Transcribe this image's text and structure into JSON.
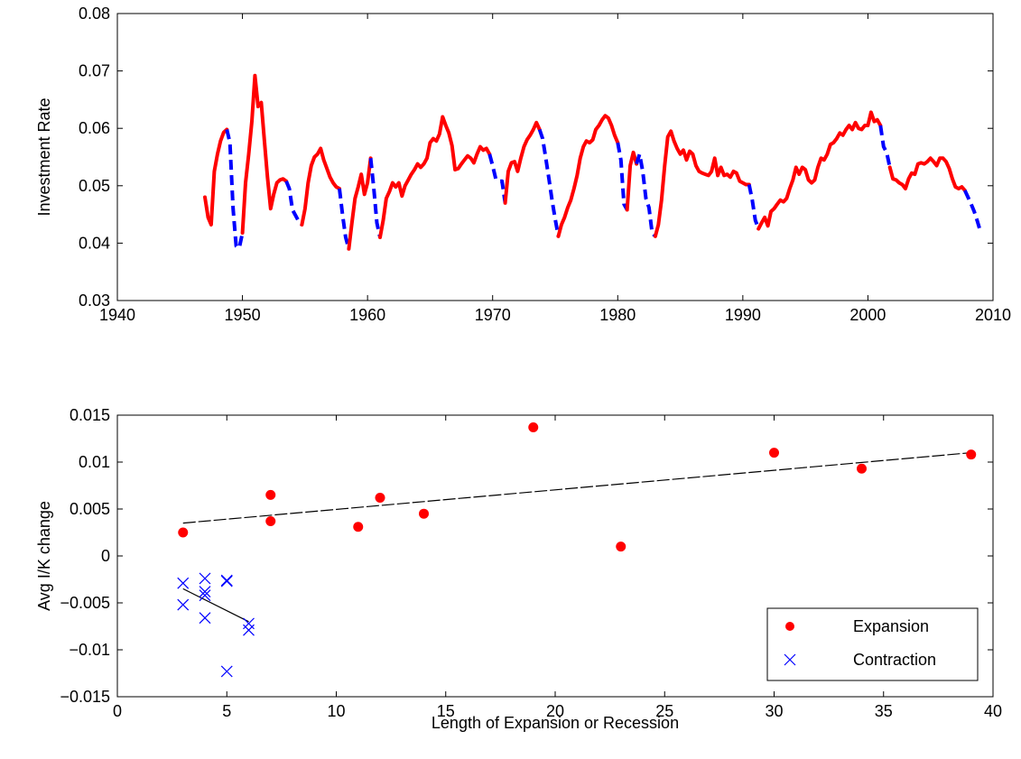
{
  "chart_data": [
    {
      "type": "line",
      "title": "",
      "xlabel": "",
      "ylabel": "Investment Rate",
      "xlim": [
        1940,
        2010
      ],
      "ylim": [
        0.03,
        0.08
      ],
      "xticks": [
        1940,
        1950,
        1960,
        1970,
        1980,
        1990,
        2000,
        2010
      ],
      "yticks": [
        0.03,
        0.04,
        0.05,
        0.06,
        0.07,
        0.08
      ],
      "xtick_labels": [
        "1940",
        "1950",
        "1960",
        "1970",
        "1980",
        "1990",
        "2000",
        "2010"
      ],
      "ytick_labels": [
        "0.03",
        "0.04",
        "0.05",
        "0.06",
        "0.07",
        "0.08"
      ],
      "colors": {
        "expansion": "#ff0000",
        "contraction": "#0000ff"
      },
      "series": [
        {
          "style": "solid",
          "color": "red",
          "x": [
            1947.0,
            1947.25,
            1947.5,
            1947.75,
            1948.0,
            1948.25,
            1948.5,
            1948.75
          ],
          "y": [
            0.048,
            0.0445,
            0.0432,
            0.0525,
            0.0555,
            0.0578,
            0.0593,
            0.0598
          ]
        },
        {
          "style": "dashed",
          "color": "blue",
          "x": [
            1948.75,
            1949.0,
            1949.25,
            1949.5,
            1949.75,
            1950.0
          ],
          "y": [
            0.0598,
            0.0575,
            0.046,
            0.0395,
            0.0392,
            0.0418
          ]
        },
        {
          "style": "solid",
          "color": "red",
          "x": [
            1950.0,
            1950.25,
            1950.5,
            1950.75,
            1951.0,
            1951.25,
            1951.5,
            1951.75,
            1952.0,
            1952.25,
            1952.5,
            1952.75,
            1953.0,
            1953.25,
            1953.5
          ],
          "y": [
            0.0418,
            0.0505,
            0.0555,
            0.0612,
            0.0692,
            0.0638,
            0.0645,
            0.058,
            0.0515,
            0.046,
            0.0485,
            0.0505,
            0.051,
            0.0512,
            0.0508
          ]
        },
        {
          "style": "dashed",
          "color": "blue",
          "x": [
            1953.5,
            1953.75,
            1954.0,
            1954.25,
            1954.5,
            1954.75
          ],
          "y": [
            0.0508,
            0.0495,
            0.0458,
            0.0448,
            0.0438,
            0.0432
          ]
        },
        {
          "style": "solid",
          "color": "red",
          "x": [
            1954.75,
            1955.0,
            1955.25,
            1955.5,
            1955.75,
            1956.0,
            1956.25,
            1956.5,
            1956.75,
            1957.0,
            1957.25,
            1957.5,
            1957.75
          ],
          "y": [
            0.0432,
            0.046,
            0.0505,
            0.0535,
            0.055,
            0.0555,
            0.0565,
            0.0545,
            0.053,
            0.0515,
            0.0505,
            0.0498,
            0.0495
          ]
        },
        {
          "style": "dashed",
          "color": "blue",
          "x": [
            1957.75,
            1958.0,
            1958.25,
            1958.5
          ],
          "y": [
            0.0495,
            0.045,
            0.041,
            0.039
          ]
        },
        {
          "style": "solid",
          "color": "red",
          "x": [
            1958.5,
            1958.75,
            1959.0,
            1959.25,
            1959.5,
            1959.75,
            1960.0,
            1960.25
          ],
          "y": [
            0.039,
            0.0435,
            0.0478,
            0.0498,
            0.052,
            0.0485,
            0.0505,
            0.0548
          ]
        },
        {
          "style": "dashed",
          "color": "blue",
          "x": [
            1960.25,
            1960.5,
            1960.75,
            1961.0
          ],
          "y": [
            0.0548,
            0.0495,
            0.0435,
            0.041
          ]
        },
        {
          "style": "solid",
          "color": "red",
          "x": [
            1961.0,
            1961.25,
            1961.5,
            1961.75,
            1962.0,
            1962.25,
            1962.5,
            1962.75,
            1963.0,
            1963.25,
            1963.5,
            1963.75,
            1964.0,
            1964.25,
            1964.5,
            1964.75,
            1965.0,
            1965.25,
            1965.5,
            1965.75,
            1966.0,
            1966.25,
            1966.5,
            1966.75,
            1967.0,
            1967.25,
            1967.5,
            1967.75,
            1968.0,
            1968.25,
            1968.5,
            1968.75,
            1969.0,
            1969.25,
            1969.5,
            1969.75
          ],
          "y": [
            0.041,
            0.044,
            0.0478,
            0.049,
            0.0505,
            0.0498,
            0.0505,
            0.0482,
            0.05,
            0.051,
            0.052,
            0.0528,
            0.0538,
            0.0532,
            0.0538,
            0.0548,
            0.0575,
            0.0582,
            0.0578,
            0.059,
            0.062,
            0.0605,
            0.0592,
            0.057,
            0.0528,
            0.053,
            0.0538,
            0.0545,
            0.0552,
            0.0548,
            0.054,
            0.0555,
            0.0568,
            0.0562,
            0.0565,
            0.0555
          ]
        },
        {
          "style": "dashed",
          "color": "blue",
          "x": [
            1969.75,
            1970.0,
            1970.25,
            1970.5,
            1970.75,
            1971.0
          ],
          "y": [
            0.0555,
            0.0535,
            0.0512,
            0.0508,
            0.0508,
            0.047
          ]
        },
        {
          "style": "solid",
          "color": "red",
          "x": [
            1971.0,
            1971.25,
            1971.5,
            1971.75,
            1972.0,
            1972.25,
            1972.5,
            1972.75,
            1973.0,
            1973.25,
            1973.5,
            1973.75
          ],
          "y": [
            0.047,
            0.0525,
            0.054,
            0.0542,
            0.0525,
            0.0548,
            0.0568,
            0.058,
            0.0588,
            0.0598,
            0.061,
            0.0598
          ]
        },
        {
          "style": "dashed",
          "color": "blue",
          "x": [
            1973.75,
            1974.0,
            1974.25,
            1974.5,
            1974.75,
            1975.0,
            1975.25
          ],
          "y": [
            0.0598,
            0.0582,
            0.0548,
            0.0512,
            0.0475,
            0.0442,
            0.0412
          ]
        },
        {
          "style": "solid",
          "color": "red",
          "x": [
            1975.25,
            1975.5,
            1975.75,
            1976.0,
            1976.25,
            1976.5,
            1976.75,
            1977.0,
            1977.25,
            1977.5,
            1977.75,
            1978.0,
            1978.25,
            1978.5,
            1978.75,
            1979.0,
            1979.25,
            1979.5,
            1979.75,
            1980.0
          ],
          "y": [
            0.0412,
            0.0432,
            0.0445,
            0.0462,
            0.0475,
            0.0495,
            0.0518,
            0.0548,
            0.0568,
            0.0578,
            0.0575,
            0.058,
            0.0598,
            0.0605,
            0.0615,
            0.0622,
            0.0618,
            0.0605,
            0.0588,
            0.0575
          ]
        },
        {
          "style": "dashed",
          "color": "blue",
          "x": [
            1980.0,
            1980.25,
            1980.5,
            1980.75
          ],
          "y": [
            0.0575,
            0.0545,
            0.0468,
            0.0458
          ]
        },
        {
          "style": "solid",
          "color": "red",
          "x": [
            1980.75,
            1981.0,
            1981.25,
            1981.5
          ],
          "y": [
            0.0458,
            0.0535,
            0.0558,
            0.0538
          ]
        },
        {
          "style": "dashed",
          "color": "blue",
          "x": [
            1981.5,
            1981.75,
            1982.0,
            1982.25,
            1982.5,
            1982.75,
            1983.0
          ],
          "y": [
            0.0538,
            0.0555,
            0.0525,
            0.0478,
            0.0462,
            0.0418,
            0.0412
          ]
        },
        {
          "style": "solid",
          "color": "red",
          "x": [
            1983.0,
            1983.25,
            1983.5,
            1983.75,
            1984.0,
            1984.25,
            1984.5,
            1984.75,
            1985.0,
            1985.25,
            1985.5,
            1985.75,
            1986.0,
            1986.25,
            1986.5,
            1986.75,
            1987.0,
            1987.25,
            1987.5,
            1987.75,
            1988.0,
            1988.25,
            1988.5,
            1988.75,
            1989.0,
            1989.25,
            1989.5,
            1989.75,
            1990.0,
            1990.25,
            1990.5
          ],
          "y": [
            0.0412,
            0.0432,
            0.0475,
            0.0535,
            0.0585,
            0.0595,
            0.0578,
            0.0565,
            0.0555,
            0.0562,
            0.0545,
            0.056,
            0.0555,
            0.0535,
            0.0525,
            0.0522,
            0.052,
            0.0518,
            0.0525,
            0.0548,
            0.0518,
            0.0532,
            0.0518,
            0.052,
            0.0515,
            0.0525,
            0.0522,
            0.0508,
            0.0505,
            0.0502,
            0.0502
          ]
        },
        {
          "style": "dashed",
          "color": "blue",
          "x": [
            1990.5,
            1990.75,
            1991.0,
            1991.25
          ],
          "y": [
            0.0502,
            0.0475,
            0.044,
            0.0425
          ]
        },
        {
          "style": "solid",
          "color": "red",
          "x": [
            1991.25,
            1991.5,
            1991.75,
            1992.0,
            1992.25,
            1992.5,
            1992.75,
            1993.0,
            1993.25,
            1993.5,
            1993.75,
            1994.0,
            1994.25,
            1994.5,
            1994.75,
            1995.0,
            1995.25,
            1995.5,
            1995.75,
            1996.0,
            1996.25,
            1996.5,
            1996.75,
            1997.0,
            1997.25,
            1997.5,
            1997.75,
            1998.0,
            1998.25,
            1998.5,
            1998.75,
            1999.0,
            1999.25,
            1999.5,
            1999.75,
            2000.0,
            2000.25,
            2000.5,
            2000.75,
            2001.0
          ],
          "y": [
            0.0425,
            0.0435,
            0.0445,
            0.043,
            0.0455,
            0.046,
            0.0468,
            0.0475,
            0.0472,
            0.0478,
            0.0495,
            0.051,
            0.0532,
            0.052,
            0.0532,
            0.0528,
            0.051,
            0.0505,
            0.051,
            0.0532,
            0.0548,
            0.0545,
            0.0555,
            0.0572,
            0.0575,
            0.0582,
            0.0592,
            0.0588,
            0.0598,
            0.0605,
            0.0598,
            0.061,
            0.06,
            0.0598,
            0.0605,
            0.0605,
            0.0628,
            0.0612,
            0.0615,
            0.0605
          ]
        },
        {
          "style": "dashed",
          "color": "blue",
          "x": [
            2001.0,
            2001.25,
            2001.5,
            2001.75
          ],
          "y": [
            0.0605,
            0.0568,
            0.0558,
            0.0532
          ]
        },
        {
          "style": "solid",
          "color": "red",
          "x": [
            2001.75,
            2002.0,
            2002.25,
            2002.5,
            2002.75,
            2003.0,
            2003.25,
            2003.5,
            2003.75,
            2004.0,
            2004.25,
            2004.5,
            2004.75,
            2005.0,
            2005.25,
            2005.5,
            2005.75,
            2006.0,
            2006.25,
            2006.5,
            2006.75,
            2007.0,
            2007.25,
            2007.5,
            2007.75
          ],
          "y": [
            0.0532,
            0.0512,
            0.051,
            0.0505,
            0.0502,
            0.0495,
            0.0512,
            0.0522,
            0.052,
            0.0538,
            0.054,
            0.0538,
            0.0542,
            0.0548,
            0.0542,
            0.0535,
            0.0548,
            0.0548,
            0.0542,
            0.053,
            0.0512,
            0.0498,
            0.0495,
            0.0498,
            0.0492
          ]
        },
        {
          "style": "dashed",
          "color": "blue",
          "x": [
            2007.75,
            2008.0,
            2008.25,
            2008.5,
            2008.75,
            2009.0
          ],
          "y": [
            0.0492,
            0.048,
            0.0468,
            0.0455,
            0.0438,
            0.042
          ]
        }
      ]
    },
    {
      "type": "scatter",
      "title": "",
      "xlabel": "Length of Expansion or Recession",
      "ylabel": "Avg I/K change",
      "xlim": [
        0,
        40
      ],
      "ylim": [
        -0.015,
        0.015
      ],
      "xticks": [
        0,
        5,
        10,
        15,
        20,
        25,
        30,
        35,
        40
      ],
      "yticks": [
        -0.015,
        -0.01,
        -0.005,
        0,
        0.005,
        0.01,
        0.015
      ],
      "xtick_labels": [
        "0",
        "5",
        "10",
        "15",
        "20",
        "25",
        "30",
        "35",
        "40"
      ],
      "ytick_labels": [
        "−0.015",
        "−0.01",
        "−0.005",
        "0",
        "0.005",
        "0.01",
        "0.015"
      ],
      "legend_position": "bottom-right",
      "colors": {
        "expansion": "#ff0000",
        "contraction": "#0000ff"
      },
      "series": [
        {
          "name": "Expansion",
          "marker": "filled-circle",
          "color": "red",
          "x": [
            3,
            7,
            7,
            11,
            12,
            14,
            19,
            23,
            30,
            34,
            39
          ],
          "y": [
            0.0025,
            0.0065,
            0.0037,
            0.0031,
            0.0062,
            0.0045,
            0.0137,
            0.001,
            0.011,
            0.0093,
            0.0108
          ]
        },
        {
          "name": "Contraction",
          "marker": "x",
          "color": "blue",
          "x": [
            3,
            3,
            4,
            4,
            4,
            4,
            5,
            5,
            5,
            6,
            6
          ],
          "y": [
            -0.0029,
            -0.0052,
            -0.0024,
            -0.0038,
            -0.0042,
            -0.0066,
            -0.0026,
            -0.0027,
            -0.0123,
            -0.0072,
            -0.0079
          ]
        }
      ],
      "fit_lines": [
        {
          "style": "dashed",
          "color": "black",
          "x": [
            3,
            39
          ],
          "y": [
            0.0035,
            0.011
          ]
        },
        {
          "style": "solid",
          "color": "black",
          "x": [
            3,
            6
          ],
          "y": [
            -0.0035,
            -0.007
          ]
        }
      ]
    }
  ]
}
